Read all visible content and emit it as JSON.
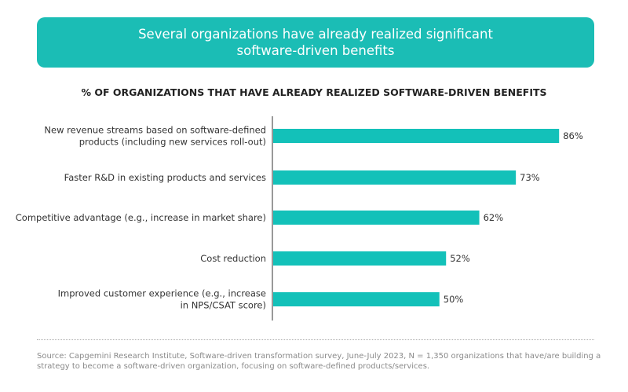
{
  "banner": {
    "line1": "Several organizations have already realized significant",
    "line2": "software-driven benefits"
  },
  "colors": {
    "banner": "#1bbdb5",
    "bar": "#13c1b9",
    "axis": "#333333"
  },
  "chart_data": {
    "type": "bar",
    "orientation": "horizontal",
    "title": "% OF ORGANIZATIONS THAT HAVE ALREADY REALIZED SOFTWARE-DRIVEN BENEFITS",
    "categories": [
      [
        "New revenue streams based on software-defined",
        "products (including new services roll-out)"
      ],
      [
        "Faster R&D in existing products and services"
      ],
      [
        "Competitive advantage (e.g., increase in market share)"
      ],
      [
        "Cost reduction"
      ],
      [
        "Improved customer experience (e.g., increase",
        "in NPS/CSAT score)"
      ]
    ],
    "values": [
      86,
      73,
      62,
      52,
      50
    ],
    "value_labels": [
      "86%",
      "73%",
      "62%",
      "52%",
      "50%"
    ],
    "xlim": [
      0,
      100
    ],
    "grid": false
  },
  "source": "Source: Capgemini Research Institute, Software-driven transformation survey, June-July 2023, N = 1,350 organizations that have/are building a strategy to become a software-driven organization, focusing on software-defined products/services."
}
